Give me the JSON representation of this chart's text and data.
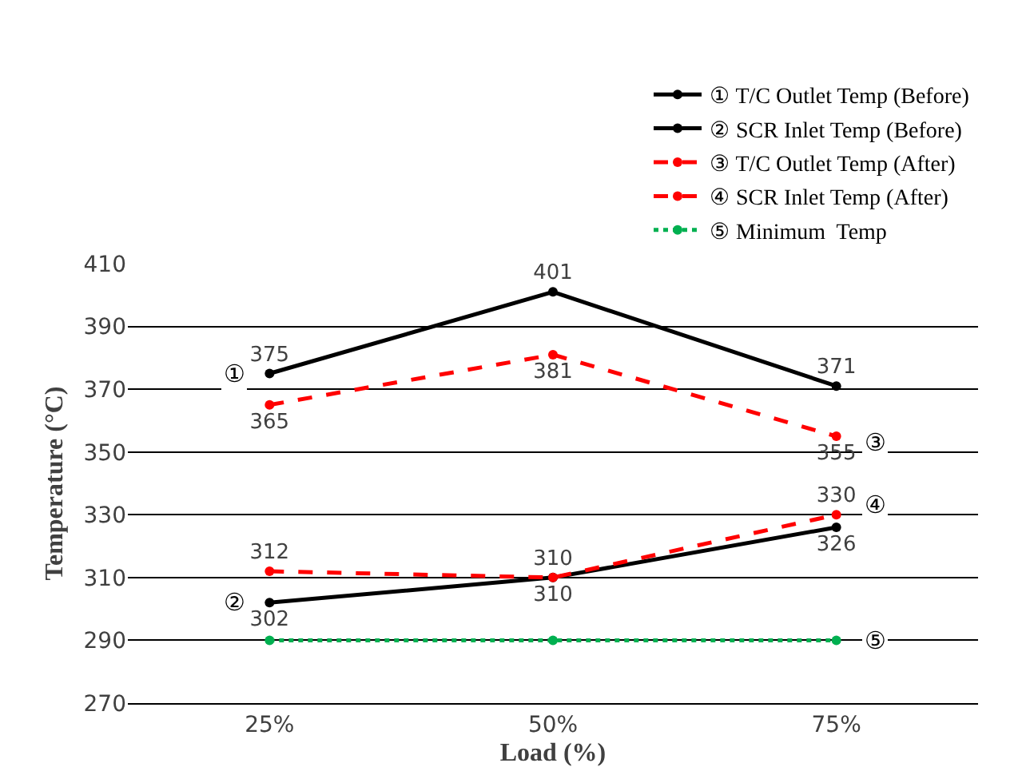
{
  "chart_data": {
    "type": "line",
    "xlabel": "Load (%)",
    "ylabel": "Temperature (°C)",
    "categories": [
      "25%",
      "50%",
      "75%"
    ],
    "series": [
      {
        "name": "① T/C Outlet Temp (Before)",
        "color": "#000000",
        "line_style": "solid",
        "values": [
          375,
          401,
          371
        ],
        "value_labels": [
          "375",
          "401",
          "371"
        ]
      },
      {
        "name": "② SCR Inlet Temp (Before)",
        "color": "#000000",
        "line_style": "solid",
        "values": [
          302,
          310,
          326
        ],
        "value_labels": [
          "302",
          "310",
          "326"
        ]
      },
      {
        "name": "③ T/C Outlet Temp (After)",
        "color": "#ff0000",
        "line_style": "dashed",
        "values": [
          365,
          381,
          355
        ],
        "value_labels": [
          "365",
          "381",
          "355"
        ]
      },
      {
        "name": "④ SCR Inlet Temp (After)",
        "color": "#ff0000",
        "line_style": "dashed",
        "values": [
          312,
          310,
          330
        ],
        "value_labels": [
          "312",
          "310",
          "330"
        ]
      },
      {
        "name": "⑤ Minimum  Temp",
        "color": "#00b050",
        "line_style": "dotted",
        "values": [
          290,
          290,
          290
        ]
      }
    ],
    "annotations": [
      {
        "text": "①",
        "x": "25%",
        "y": 375
      },
      {
        "text": "②",
        "x": "25%",
        "y": 302
      },
      {
        "text": "③",
        "x": "75%",
        "y": 353
      },
      {
        "text": "④",
        "x": "75%",
        "y": 333
      },
      {
        "text": "⑤",
        "x": "75%",
        "y": 290
      }
    ],
    "ylim": [
      270,
      410
    ],
    "yticks": [
      270,
      290,
      310,
      330,
      350,
      370,
      390,
      410
    ],
    "grid": "y",
    "legend": "top right",
    "marker": "circle"
  }
}
